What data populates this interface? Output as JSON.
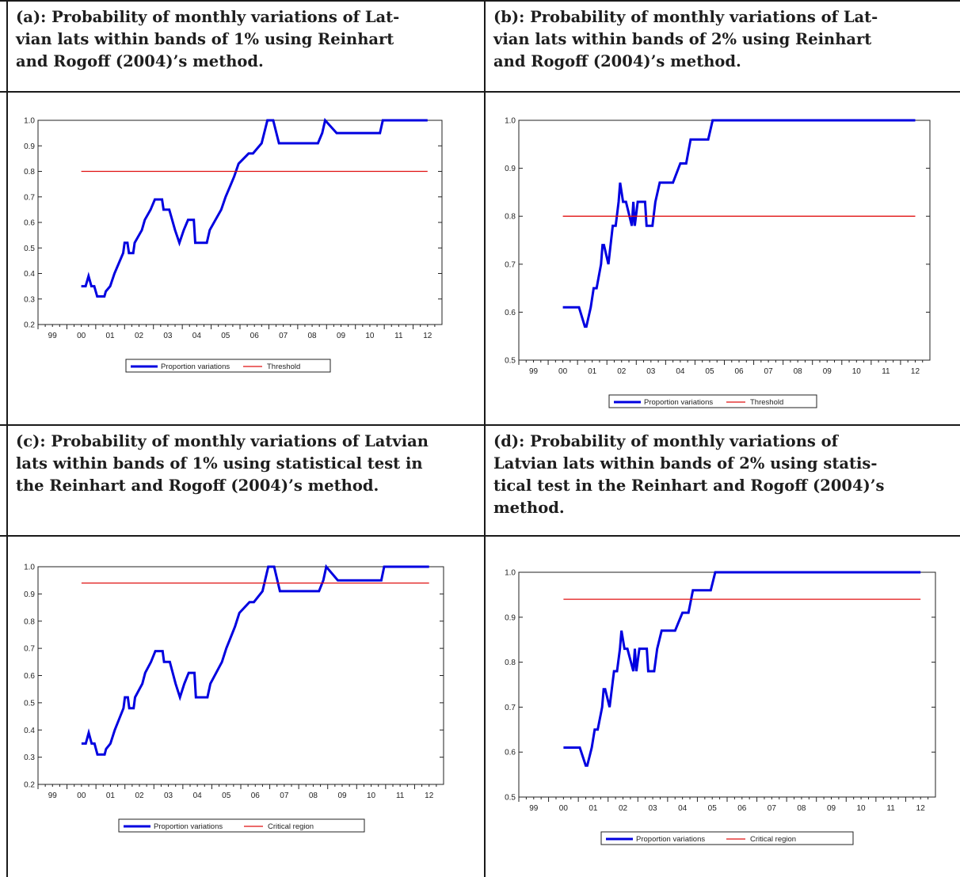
{
  "panels": [
    {
      "title": "(a): Probability of monthly variations of Lat-\nvian lats within bands of 1% using Reinhart\nand Rogoff (2004)’s method."
    },
    {
      "title": "(b): Probability of monthly variations of Lat-\nvian lats within bands of 2% using Reinhart\nand Rogoff (2004)’s method."
    },
    {
      "title": "(c): Probability of monthly variations of Latvian\nlats within bands of 1% using statistical test in\nthe Reinhart and Rogoff (2004)’s method."
    },
    {
      "title": "(d): Probability of monthly variations of\nLatvian lats within bands of 2% using statis-\ntical test in the Reinhart and Rogoff (2004)’s\nmethod."
    }
  ],
  "colors": {
    "series": "#0000e0",
    "reference": "#e01010"
  },
  "chart_data": [
    {
      "type": "line",
      "xticks": [
        "99",
        "00",
        "01",
        "02",
        "03",
        "04",
        "05",
        "06",
        "07",
        "08",
        "09",
        "10",
        "11",
        "12"
      ],
      "xlim": [
        1999,
        2013
      ],
      "ylim": [
        0.2,
        1.0
      ],
      "yticks": [
        "0.2",
        "0.3",
        "0.4",
        "0.5",
        "0.6",
        "0.7",
        "0.8",
        "0.9",
        "1.0"
      ],
      "legend": [
        "Proportion variations",
        "Threshold"
      ],
      "grid": false,
      "series": [
        {
          "name": "Proportion variations",
          "x": [
            2000.5,
            2000.65,
            2000.75,
            2000.85,
            2000.95,
            2001.05,
            2001.3,
            2001.35,
            2001.5,
            2001.65,
            2001.8,
            2001.95,
            2002.0,
            2002.1,
            2002.15,
            2002.3,
            2002.35,
            2002.6,
            2002.7,
            2002.9,
            2003.05,
            2003.3,
            2003.35,
            2003.55,
            2003.75,
            2003.9,
            2004.05,
            2004.2,
            2004.4,
            2004.45,
            2004.85,
            2004.95,
            2005.15,
            2005.35,
            2005.5,
            2005.65,
            2005.8,
            2005.95,
            2006.3,
            2006.45,
            2006.75,
            2006.95,
            2007.15,
            2007.35,
            2008.5,
            2008.7,
            2008.85,
            2008.95,
            2009.35,
            2010.85,
            2010.95,
            2012.5
          ],
          "values": [
            0.35,
            0.35,
            0.39,
            0.35,
            0.35,
            0.31,
            0.31,
            0.33,
            0.35,
            0.4,
            0.44,
            0.48,
            0.52,
            0.52,
            0.48,
            0.48,
            0.52,
            0.57,
            0.61,
            0.65,
            0.69,
            0.69,
            0.65,
            0.65,
            0.57,
            0.52,
            0.57,
            0.61,
            0.61,
            0.52,
            0.52,
            0.57,
            0.61,
            0.65,
            0.7,
            0.74,
            0.78,
            0.83,
            0.87,
            0.87,
            0.91,
            1.0,
            1.0,
            0.91,
            0.91,
            0.91,
            0.95,
            1.0,
            0.95,
            0.95,
            1.0,
            1.0
          ]
        },
        {
          "name": "Threshold",
          "x": [
            2000.5,
            2012.5
          ],
          "values": [
            0.8,
            0.8
          ]
        }
      ]
    },
    {
      "type": "line",
      "xticks": [
        "99",
        "00",
        "01",
        "02",
        "03",
        "04",
        "05",
        "06",
        "07",
        "08",
        "09",
        "10",
        "11",
        "12"
      ],
      "xlim": [
        1999,
        2013
      ],
      "ylim": [
        0.5,
        1.0
      ],
      "yticks": [
        "0.5",
        "0.6",
        "0.7",
        "0.8",
        "0.9",
        "1.0"
      ],
      "legend": [
        "Proportion variations",
        "Threshold"
      ],
      "grid": false,
      "series": [
        {
          "name": "Proportion variations",
          "x": [
            2000.5,
            2001.05,
            2001.25,
            2001.3,
            2001.45,
            2001.55,
            2001.65,
            2001.8,
            2001.85,
            2001.9,
            2002.05,
            2002.2,
            2002.3,
            2002.4,
            2002.45,
            2002.55,
            2002.65,
            2002.85,
            2002.9,
            2002.95,
            2003.05,
            2003.3,
            2003.35,
            2003.55,
            2003.65,
            2003.8,
            2003.95,
            2004.25,
            2004.5,
            2004.7,
            2004.85,
            2005.05,
            2005.25,
            2005.45,
            2005.6,
            2012.5
          ],
          "values": [
            0.61,
            0.61,
            0.57,
            0.57,
            0.61,
            0.65,
            0.65,
            0.7,
            0.74,
            0.74,
            0.7,
            0.78,
            0.78,
            0.83,
            0.87,
            0.83,
            0.83,
            0.78,
            0.83,
            0.78,
            0.83,
            0.83,
            0.78,
            0.78,
            0.83,
            0.87,
            0.87,
            0.87,
            0.91,
            0.91,
            0.96,
            0.96,
            0.96,
            0.96,
            1.0,
            1.0
          ]
        },
        {
          "name": "Threshold",
          "x": [
            2000.5,
            2012.5
          ],
          "values": [
            0.8,
            0.8
          ]
        }
      ]
    },
    {
      "type": "line",
      "xticks": [
        "99",
        "00",
        "01",
        "02",
        "03",
        "04",
        "05",
        "06",
        "07",
        "08",
        "09",
        "10",
        "11",
        "12"
      ],
      "xlim": [
        1999,
        2013
      ],
      "ylim": [
        0.2,
        1.0
      ],
      "yticks": [
        "0.2",
        "0.3",
        "0.4",
        "0.5",
        "0.6",
        "0.7",
        "0.8",
        "0.9",
        "1.0"
      ],
      "legend": [
        "Proportion variations",
        "Critical region"
      ],
      "grid": false,
      "series": [
        {
          "name": "Proportion variations",
          "x": [
            2000.5,
            2000.65,
            2000.75,
            2000.85,
            2000.95,
            2001.05,
            2001.3,
            2001.35,
            2001.5,
            2001.65,
            2001.8,
            2001.95,
            2002.0,
            2002.1,
            2002.15,
            2002.3,
            2002.35,
            2002.6,
            2002.7,
            2002.9,
            2003.05,
            2003.3,
            2003.35,
            2003.55,
            2003.75,
            2003.9,
            2004.05,
            2004.2,
            2004.4,
            2004.45,
            2004.85,
            2004.95,
            2005.15,
            2005.35,
            2005.5,
            2005.65,
            2005.8,
            2005.95,
            2006.3,
            2006.45,
            2006.75,
            2006.95,
            2007.15,
            2007.35,
            2008.5,
            2008.7,
            2008.85,
            2008.95,
            2009.35,
            2010.85,
            2010.95,
            2012.5
          ],
          "values": [
            0.35,
            0.35,
            0.39,
            0.35,
            0.35,
            0.31,
            0.31,
            0.33,
            0.35,
            0.4,
            0.44,
            0.48,
            0.52,
            0.52,
            0.48,
            0.48,
            0.52,
            0.57,
            0.61,
            0.65,
            0.69,
            0.69,
            0.65,
            0.65,
            0.57,
            0.52,
            0.57,
            0.61,
            0.61,
            0.52,
            0.52,
            0.57,
            0.61,
            0.65,
            0.7,
            0.74,
            0.78,
            0.83,
            0.87,
            0.87,
            0.91,
            1.0,
            1.0,
            0.91,
            0.91,
            0.91,
            0.95,
            1.0,
            0.95,
            0.95,
            1.0,
            1.0
          ]
        },
        {
          "name": "Critical region",
          "x": [
            2000.5,
            2012.5
          ],
          "values": [
            0.94,
            0.94
          ]
        }
      ]
    },
    {
      "type": "line",
      "xticks": [
        "99",
        "00",
        "01",
        "02",
        "03",
        "04",
        "05",
        "06",
        "07",
        "08",
        "09",
        "10",
        "11",
        "12"
      ],
      "xlim": [
        1999,
        2013
      ],
      "ylim": [
        0.5,
        1.0
      ],
      "yticks": [
        "0.5",
        "0.6",
        "0.7",
        "0.8",
        "0.9",
        "1.0"
      ],
      "legend": [
        "Proportion variations",
        "Critical region"
      ],
      "grid": false,
      "series": [
        {
          "name": "Proportion variations",
          "x": [
            2000.5,
            2001.05,
            2001.25,
            2001.3,
            2001.45,
            2001.55,
            2001.65,
            2001.8,
            2001.85,
            2001.9,
            2002.05,
            2002.2,
            2002.3,
            2002.4,
            2002.45,
            2002.55,
            2002.65,
            2002.85,
            2002.9,
            2002.95,
            2003.05,
            2003.3,
            2003.35,
            2003.55,
            2003.65,
            2003.8,
            2003.95,
            2004.25,
            2004.5,
            2004.7,
            2004.85,
            2005.05,
            2005.25,
            2005.45,
            2005.6,
            2012.5
          ],
          "values": [
            0.61,
            0.61,
            0.57,
            0.57,
            0.61,
            0.65,
            0.65,
            0.7,
            0.74,
            0.74,
            0.7,
            0.78,
            0.78,
            0.83,
            0.87,
            0.83,
            0.83,
            0.78,
            0.83,
            0.78,
            0.83,
            0.83,
            0.78,
            0.78,
            0.83,
            0.87,
            0.87,
            0.87,
            0.91,
            0.91,
            0.96,
            0.96,
            0.96,
            0.96,
            1.0,
            1.0
          ]
        },
        {
          "name": "Critical region",
          "x": [
            2000.5,
            2012.5
          ],
          "values": [
            0.94,
            0.94
          ]
        }
      ]
    }
  ]
}
